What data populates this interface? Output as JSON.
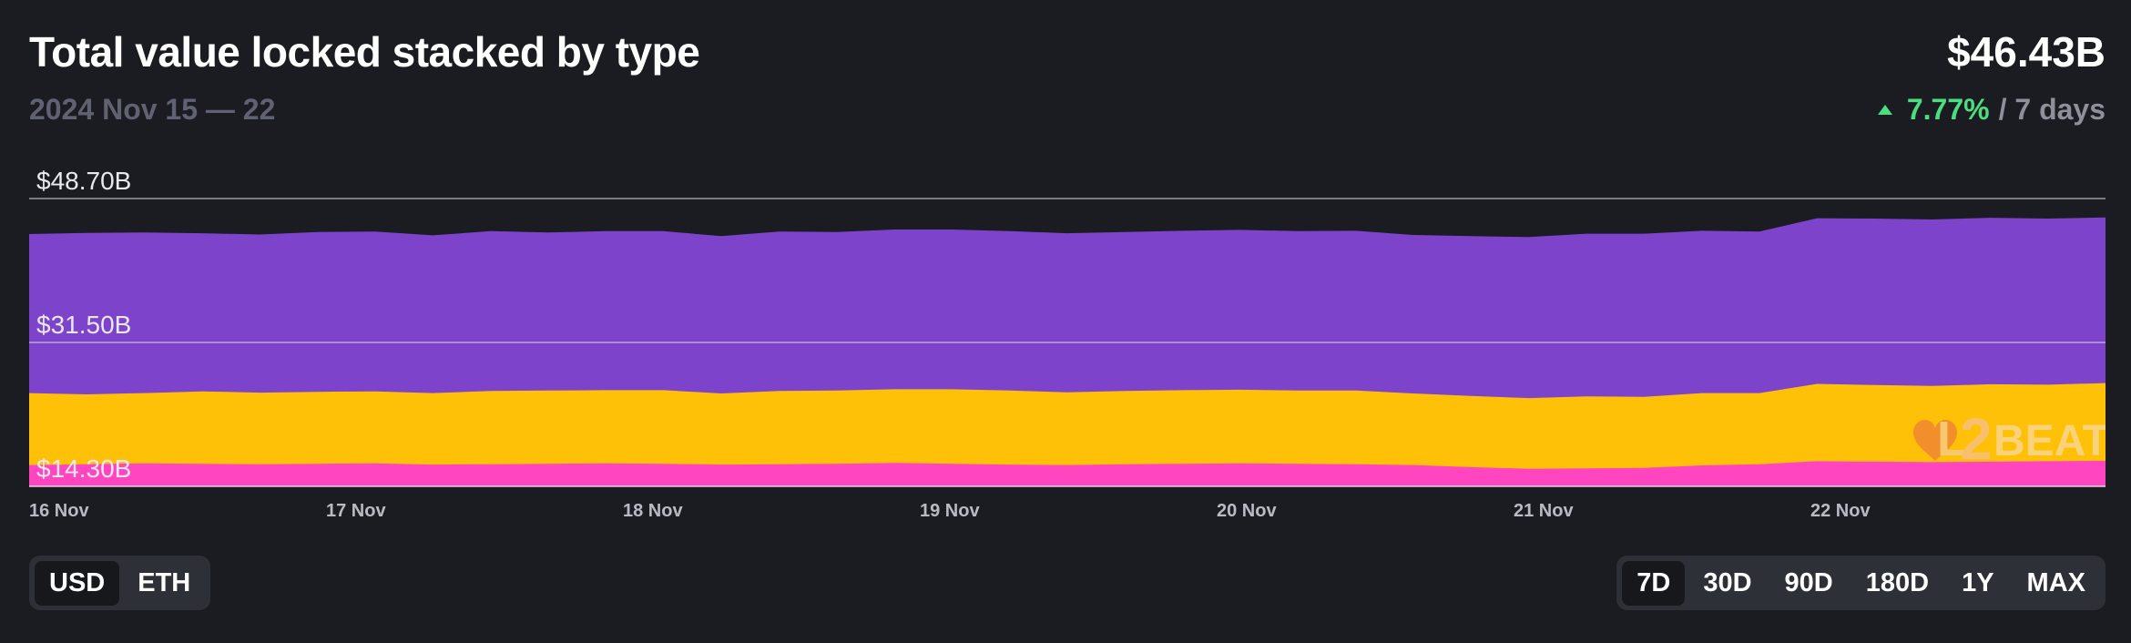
{
  "header": {
    "title": "Total value locked stacked by type",
    "date_range": "2024 Nov 15 — 22",
    "total_value": "$46.43B",
    "change_pct": "7.77%",
    "change_period": "/ 7 days",
    "change_direction_icon": "caret-up-icon",
    "change_color": "#4ade80"
  },
  "watermark": {
    "text_l": "L",
    "text_2": "2",
    "text_beat": "BEAT"
  },
  "controls": {
    "unit_options": [
      {
        "label": "USD",
        "active": true
      },
      {
        "label": "ETH",
        "active": false
      }
    ],
    "range_options": [
      {
        "label": "7D",
        "active": true
      },
      {
        "label": "30D",
        "active": false
      },
      {
        "label": "90D",
        "active": false
      },
      {
        "label": "180D",
        "active": false
      },
      {
        "label": "1Y",
        "active": false
      },
      {
        "label": "MAX",
        "active": false
      }
    ]
  },
  "chart_data": {
    "type": "area",
    "stacked": true,
    "x_start": "2024-11-15 12:00",
    "x_end": "2024-11-22 12:00",
    "x_tick_labels": [
      "16 Nov",
      "17 Nov",
      "18 Nov",
      "19 Nov",
      "20 Nov",
      "21 Nov",
      "22 Nov"
    ],
    "y_tick_labels": [
      "$48.70B",
      "$31.50B",
      "$14.30B"
    ],
    "y_tick_values": [
      48.7,
      31.5,
      14.3
    ],
    "ylim": [
      14.3,
      48.7
    ],
    "grid": true,
    "series": [
      {
        "color": "#ff46c0",
        "values": [
          16.85,
          16.95,
          17.05,
          17.0,
          16.95,
          17.0,
          17.05,
          16.9,
          16.95,
          17.0,
          17.05,
          17.0,
          16.9,
          16.95,
          17.0,
          17.1,
          17.0,
          16.9,
          16.85,
          16.95,
          17.0,
          17.05,
          17.0,
          16.95,
          16.85,
          16.6,
          16.4,
          16.45,
          16.5,
          16.8,
          16.95,
          17.3,
          17.25,
          17.2,
          17.25,
          17.3,
          17.35
        ]
      },
      {
        "color": "#ffc107",
        "values": [
          25.45,
          25.3,
          25.45,
          25.65,
          25.5,
          25.6,
          25.65,
          25.45,
          25.7,
          25.75,
          25.8,
          25.8,
          25.4,
          25.7,
          25.75,
          25.9,
          25.9,
          25.75,
          25.55,
          25.7,
          25.8,
          25.85,
          25.75,
          25.75,
          25.4,
          25.1,
          24.85,
          25.05,
          25.0,
          25.45,
          25.45,
          26.55,
          26.4,
          26.3,
          26.5,
          26.45,
          26.65
        ]
      },
      {
        "color": "#7e43cb",
        "values": [
          44.45,
          44.6,
          44.65,
          44.55,
          44.4,
          44.7,
          44.75,
          44.3,
          44.8,
          44.65,
          44.8,
          44.8,
          44.2,
          44.75,
          44.7,
          45.0,
          45.0,
          44.8,
          44.55,
          44.7,
          44.85,
          44.95,
          44.8,
          44.85,
          44.35,
          44.2,
          44.1,
          44.5,
          44.5,
          44.85,
          44.75,
          46.35,
          46.3,
          46.2,
          46.4,
          46.3,
          46.45
        ]
      }
    ]
  }
}
